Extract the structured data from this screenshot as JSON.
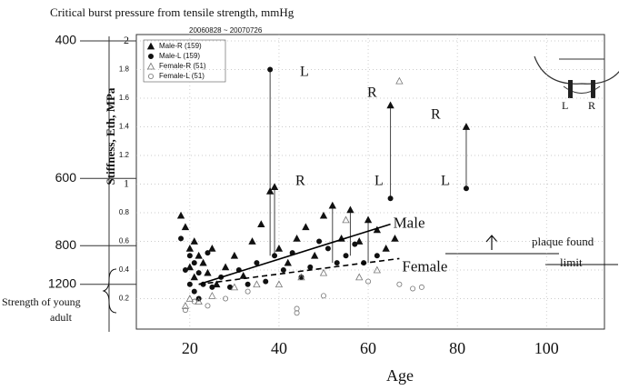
{
  "chart_data": {
    "type": "scatter",
    "title": "Critical burst pressure from tensile strength, mmHg",
    "subtitle": "20060828   ~ 20070726",
    "ylabel": "Stiffness, Eth, MPa",
    "xlabel": "Age",
    "xlim": [
      8,
      113
    ],
    "ylim": [
      0,
      2
    ],
    "xticks": [
      20,
      40,
      60,
      80,
      100
    ],
    "yticks": [
      0.2,
      0.4,
      0.6,
      0.8,
      1,
      1.2,
      1.4,
      1.6,
      1.8,
      2
    ],
    "grid": true,
    "pressure_ticks": [
      {
        "value": 2,
        "label": "400"
      },
      {
        "value": 1.04,
        "label": "600"
      },
      {
        "value": 0.57,
        "label": "800"
      },
      {
        "value": 0.3,
        "label": "1200"
      }
    ],
    "series": [
      {
        "name": "Male-R (159)",
        "marker": "triangle",
        "filled": true,
        "color": "#111111",
        "x": [
          18,
          19,
          20,
          20,
          21,
          21,
          22,
          23,
          24,
          25,
          26,
          28,
          30,
          32,
          34,
          36,
          38,
          39,
          40,
          42,
          44,
          46,
          48,
          50,
          52,
          54,
          56,
          58,
          60,
          62,
          64,
          66,
          65,
          82
        ],
        "values": [
          0.78,
          0.7,
          0.55,
          0.42,
          0.35,
          0.6,
          0.5,
          0.45,
          0.38,
          0.55,
          0.3,
          0.42,
          0.5,
          0.36,
          0.6,
          0.72,
          0.95,
          0.98,
          0.55,
          0.45,
          0.62,
          0.7,
          0.5,
          0.78,
          0.85,
          0.62,
          0.82,
          0.6,
          0.75,
          0.68,
          0.55,
          0.62,
          1.55,
          1.4
        ]
      },
      {
        "name": "Male-L (159)",
        "marker": "circle",
        "filled": true,
        "color": "#111111",
        "x": [
          18,
          19,
          20,
          20,
          21,
          21,
          22,
          22,
          23,
          24,
          25,
          27,
          29,
          31,
          33,
          35,
          37,
          38,
          39,
          41,
          43,
          45,
          47,
          49,
          51,
          53,
          55,
          57,
          59,
          62,
          65,
          82
        ],
        "values": [
          0.62,
          0.4,
          0.3,
          0.5,
          0.25,
          0.45,
          0.2,
          0.38,
          0.3,
          0.52,
          0.28,
          0.35,
          0.28,
          0.4,
          0.3,
          0.45,
          0.32,
          1.8,
          0.5,
          0.4,
          0.52,
          0.35,
          0.42,
          0.6,
          0.55,
          0.45,
          0.5,
          0.58,
          0.45,
          0.5,
          0.9,
          0.97
        ]
      },
      {
        "name": "Female-R (51)",
        "marker": "triangle",
        "filled": false,
        "color": "#777777",
        "x": [
          19,
          20,
          22,
          25,
          30,
          35,
          40,
          45,
          50,
          55,
          58,
          62,
          67
        ],
        "values": [
          0.15,
          0.2,
          0.18,
          0.22,
          0.28,
          0.3,
          0.3,
          0.35,
          0.38,
          0.75,
          0.35,
          0.4,
          1.72
        ]
      },
      {
        "name": "Female-L (51)",
        "marker": "circle",
        "filled": false,
        "color": "#777777",
        "x": [
          19,
          21,
          24,
          28,
          33,
          44,
          44,
          50,
          60,
          67,
          70,
          72
        ],
        "values": [
          0.12,
          0.18,
          0.15,
          0.2,
          0.25,
          0.1,
          0.13,
          0.22,
          0.32,
          0.3,
          0.27,
          0.28
        ]
      }
    ],
    "segments": [
      {
        "x": 38,
        "values": [
          1.8,
          0.5
        ]
      },
      {
        "x": 65,
        "values": [
          1.55,
          0.9
        ]
      },
      {
        "x": 82,
        "values": [
          1.4,
          0.97
        ]
      },
      {
        "x": 39,
        "values": [
          0.98,
          0.5
        ]
      },
      {
        "x": 52,
        "values": [
          0.85,
          0.45
        ]
      },
      {
        "x": 56,
        "values": [
          0.82,
          0.5
        ]
      },
      {
        "x": 60,
        "values": [
          0.75,
          0.45
        ]
      }
    ],
    "trend_lines": [
      {
        "name": "Male",
        "dashed": false,
        "x": [
          22,
          65
        ],
        "values": [
          0.3,
          0.72
        ]
      },
      {
        "name": "Female",
        "dashed": true,
        "x": [
          22,
          67
        ],
        "values": [
          0.3,
          0.48
        ]
      }
    ],
    "side_labels": [
      "L",
      "R",
      "R",
      "R",
      "L",
      "L"
    ],
    "inset_labels": [
      "L",
      "R"
    ],
    "plaque_label": [
      "plaque found",
      "limit"
    ],
    "young_label": [
      "Strength of young",
      "adult"
    ]
  }
}
